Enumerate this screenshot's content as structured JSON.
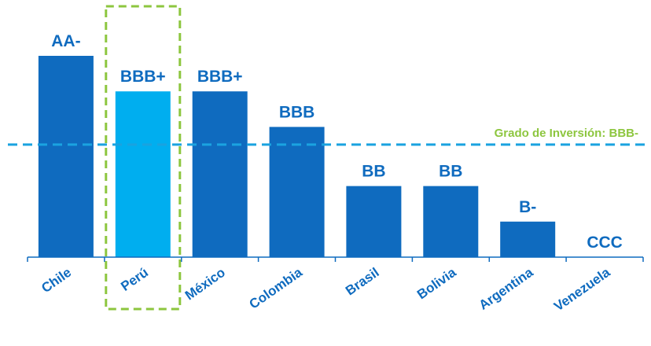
{
  "chart_data": {
    "type": "bar",
    "title": "",
    "xlabel": "",
    "ylabel": "",
    "categories": [
      "Chile",
      "Perú",
      "México",
      "Colombia",
      "Brasil",
      "Bolivia",
      "Argentina",
      "Venezuela"
    ],
    "ratings": [
      "AA-",
      "BBB+",
      "BBB+",
      "BBB",
      "BB",
      "BB",
      "B-",
      "CCC"
    ],
    "values": [
      17,
      14,
      14,
      11,
      6,
      6,
      3,
      0
    ],
    "highlight": "Perú",
    "grid": false,
    "threshold": {
      "label": "Grado de Inversión: BBB-",
      "value": 9.5
    },
    "ylim": [
      0,
      17
    ]
  },
  "colors": {
    "bar": "#0F6BBF",
    "highlight_bar": "#00AEEF",
    "label": "#0F6BBF",
    "threshold_line": "#1AA3E0",
    "threshold_text": "#8DC63F",
    "highlight_box": "#8DC63F",
    "axis": "#0F6BBF"
  }
}
